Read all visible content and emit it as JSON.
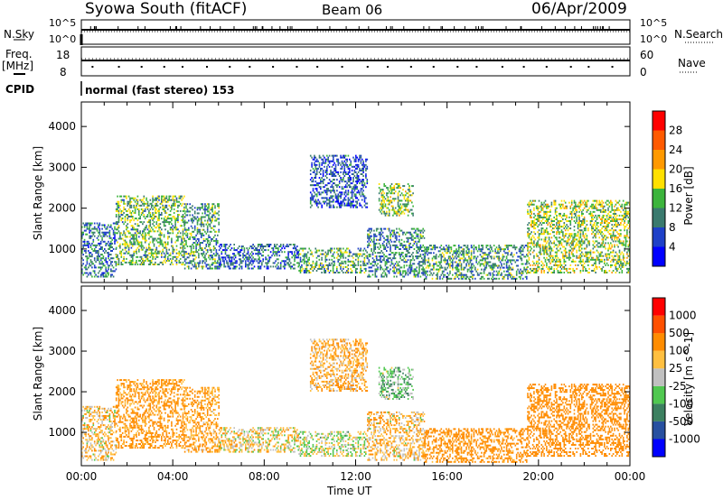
{
  "header": {
    "station": "Syowa South (fitACF)",
    "beam": "Beam 06",
    "date": "06/Apr/2009"
  },
  "top_panels": {
    "nsky_label": "N.Sky",
    "nsearch_label": "N.Search",
    "nsky_ticks": [
      "10^5",
      "10^0"
    ],
    "nsearch_ticks": [
      "10^5",
      "10^0"
    ],
    "freq_label": "Freq.",
    "freq_unit": "[MHz]",
    "freq_ticks": [
      "18",
      "8"
    ],
    "nave_label": "Nave",
    "nave_ticks": [
      "60",
      "0"
    ],
    "cpid_label": "CPID",
    "cpid_text": "normal (fast stereo) 153"
  },
  "axes": {
    "ylabel": "Slant Range [km]",
    "xlabel": "Time UT",
    "y_ticks": [
      "4000",
      "3000",
      "2000",
      "1000"
    ],
    "x_ticks": [
      "00:00",
      "04:00",
      "08:00",
      "12:00",
      "16:00",
      "20:00",
      "00:00"
    ]
  },
  "colorbars": {
    "power": {
      "label": "Power [dB]",
      "ticks": [
        "28",
        "24",
        "20",
        "16",
        "12",
        "8",
        "4"
      ],
      "colors": [
        "#0000ff",
        "#1e40c8",
        "#3a7a6e",
        "#3cb43c",
        "#ffe000",
        "#ff9900",
        "#ff5a00",
        "#ff0000"
      ]
    },
    "velocity": {
      "label": "Velocity [m s^-1]",
      "ticks": [
        "1000",
        "500",
        "100",
        "25",
        "-25",
        "-100",
        "-500",
        "-1000"
      ],
      "colors": [
        "#0000ff",
        "#2850a0",
        "#3c8060",
        "#50c850",
        "#c0c0c0",
        "#ffbf40",
        "#ff8c00",
        "#ff5000",
        "#ff0000"
      ]
    }
  },
  "chart_data": [
    {
      "type": "heatmap",
      "name": "Power",
      "x_range": [
        0,
        24
      ],
      "y_range": [
        180,
        4600
      ],
      "xlabel": "Time UT",
      "ylabel": "Slant Range [km]",
      "colorbar_range": [
        3,
        30
      ],
      "regions": [
        {
          "t": [
            0,
            1.5
          ],
          "r": [
            300,
            1650
          ],
          "v": 10
        },
        {
          "t": [
            1.5,
            4.5
          ],
          "r": [
            600,
            2300
          ],
          "v": 14
        },
        {
          "t": [
            4.5,
            6.0
          ],
          "r": [
            500,
            2100
          ],
          "v": 12
        },
        {
          "t": [
            6.0,
            9.5
          ],
          "r": [
            500,
            1100
          ],
          "v": 9
        },
        {
          "t": [
            9.5,
            12.5
          ],
          "r": [
            400,
            1000
          ],
          "v": 13
        },
        {
          "t": [
            10.0,
            12.5
          ],
          "r": [
            2000,
            3300
          ],
          "v": 8
        },
        {
          "t": [
            12.5,
            15.0
          ],
          "r": [
            300,
            1500
          ],
          "v": 11
        },
        {
          "t": [
            13.0,
            14.5
          ],
          "r": [
            1800,
            2600
          ],
          "v": 15
        },
        {
          "t": [
            15.0,
            19.5
          ],
          "r": [
            250,
            1100
          ],
          "v": 12
        },
        {
          "t": [
            19.5,
            24.0
          ],
          "r": [
            400,
            2200
          ],
          "v": 16
        }
      ]
    },
    {
      "type": "heatmap",
      "name": "Velocity",
      "x_range": [
        0,
        24
      ],
      "y_range": [
        180,
        4600
      ],
      "xlabel": "Time UT",
      "ylabel": "Slant Range [km]",
      "colorbar_range": [
        -1000,
        1000
      ],
      "regions": [
        {
          "t": [
            0,
            1.5
          ],
          "r": [
            300,
            1650
          ],
          "v": -60
        },
        {
          "t": [
            1.5,
            4.5
          ],
          "r": [
            600,
            2300
          ],
          "v": -150
        },
        {
          "t": [
            4.5,
            6.0
          ],
          "r": [
            500,
            2100
          ],
          "v": -120
        },
        {
          "t": [
            6.0,
            9.5
          ],
          "r": [
            500,
            1100
          ],
          "v": -40
        },
        {
          "t": [
            9.5,
            12.5
          ],
          "r": [
            400,
            1000
          ],
          "v": 5
        },
        {
          "t": [
            10.0,
            12.5
          ],
          "r": [
            2000,
            3300
          ],
          "v": -90
        },
        {
          "t": [
            12.5,
            15.0
          ],
          "r": [
            300,
            1500
          ],
          "v": -70
        },
        {
          "t": [
            13.0,
            14.5
          ],
          "r": [
            1800,
            2600
          ],
          "v": 60
        },
        {
          "t": [
            15.0,
            19.5
          ],
          "r": [
            250,
            1100
          ],
          "v": -180
        },
        {
          "t": [
            19.5,
            24.0
          ],
          "r": [
            400,
            2200
          ],
          "v": -200
        }
      ]
    }
  ]
}
